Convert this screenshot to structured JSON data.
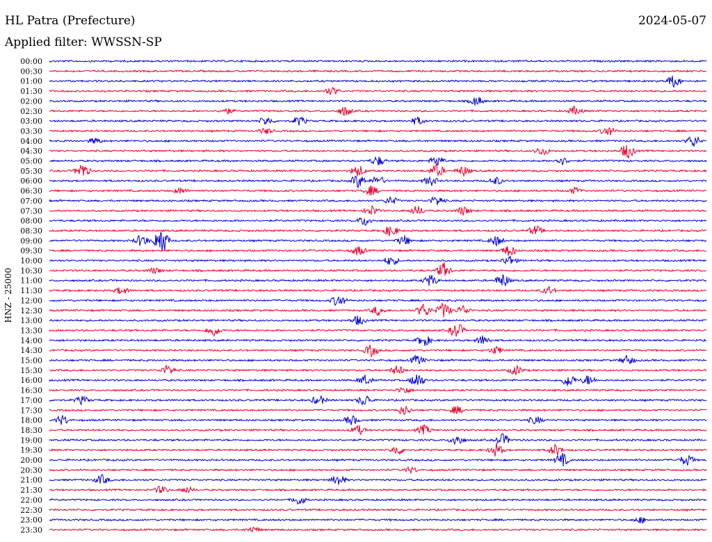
{
  "header": {
    "station": "HL Patra (Prefecture)",
    "date": "2024-05-07",
    "filter": "Applied filter: WWSSN-SP"
  },
  "channel_label": "HNZ - 25000",
  "colors": {
    "even_trace": "#0000cc",
    "odd_trace": "#e8002e"
  },
  "chart_data": {
    "type": "line",
    "title": "HL Patra (Prefecture)",
    "subtitle": "Applied filter: WWSSN-SP",
    "ylabel": "HNZ - 25000",
    "xlabel": "",
    "grid": false,
    "legend": "none",
    "y_tick_labels": [
      "00:00",
      "00:30",
      "01:00",
      "01:30",
      "02:00",
      "02:30",
      "03:00",
      "03:30",
      "04:00",
      "04:30",
      "05:00",
      "05:30",
      "06:00",
      "06:30",
      "07:00",
      "07:30",
      "08:00",
      "08:30",
      "09:00",
      "09:30",
      "10:00",
      "10:30",
      "11:00",
      "11:30",
      "12:00",
      "12:30",
      "13:00",
      "13:30",
      "14:00",
      "14:30",
      "15:00",
      "15:30",
      "16:00",
      "16:30",
      "17:00",
      "17:30",
      "18:00",
      "18:30",
      "19:00",
      "19:30",
      "20:00",
      "20:30",
      "21:00",
      "21:30",
      "22:00",
      "22:30",
      "23:00",
      "23:30"
    ],
    "trace_minutes": 30,
    "events": [
      {
        "row": 2,
        "x": 0.95,
        "amp": 0.6
      },
      {
        "row": 3,
        "x": 0.43,
        "amp": 0.4
      },
      {
        "row": 4,
        "x": 0.65,
        "amp": 0.5
      },
      {
        "row": 5,
        "x": 0.27,
        "amp": 0.3
      },
      {
        "row": 5,
        "x": 0.45,
        "amp": 0.5
      },
      {
        "row": 5,
        "x": 0.8,
        "amp": 0.45
      },
      {
        "row": 6,
        "x": 0.33,
        "amp": 0.45
      },
      {
        "row": 6,
        "x": 0.38,
        "amp": 0.45
      },
      {
        "row": 6,
        "x": 0.56,
        "amp": 0.4
      },
      {
        "row": 7,
        "x": 0.33,
        "amp": 0.3
      },
      {
        "row": 7,
        "x": 0.85,
        "amp": 0.5
      },
      {
        "row": 8,
        "x": 0.07,
        "amp": 0.3
      },
      {
        "row": 8,
        "x": 0.98,
        "amp": 0.6
      },
      {
        "row": 9,
        "x": 0.75,
        "amp": 0.45
      },
      {
        "row": 9,
        "x": 0.88,
        "amp": 0.8
      },
      {
        "row": 10,
        "x": 0.5,
        "amp": 0.5
      },
      {
        "row": 10,
        "x": 0.59,
        "amp": 0.5
      },
      {
        "row": 10,
        "x": 0.78,
        "amp": 0.4
      },
      {
        "row": 11,
        "x": 0.05,
        "amp": 0.8
      },
      {
        "row": 11,
        "x": 0.47,
        "amp": 0.6
      },
      {
        "row": 11,
        "x": 0.59,
        "amp": 0.7
      },
      {
        "row": 11,
        "x": 0.63,
        "amp": 0.5
      },
      {
        "row": 12,
        "x": 0.47,
        "amp": 0.7
      },
      {
        "row": 12,
        "x": 0.5,
        "amp": 0.5
      },
      {
        "row": 12,
        "x": 0.58,
        "amp": 0.5
      },
      {
        "row": 12,
        "x": 0.68,
        "amp": 0.4
      },
      {
        "row": 13,
        "x": 0.2,
        "amp": 0.3
      },
      {
        "row": 13,
        "x": 0.49,
        "amp": 0.5
      },
      {
        "row": 13,
        "x": 0.8,
        "amp": 0.3
      },
      {
        "row": 14,
        "x": 0.52,
        "amp": 0.4
      },
      {
        "row": 14,
        "x": 0.59,
        "amp": 0.5
      },
      {
        "row": 15,
        "x": 0.49,
        "amp": 0.5
      },
      {
        "row": 15,
        "x": 0.56,
        "amp": 0.5
      },
      {
        "row": 15,
        "x": 0.63,
        "amp": 0.45
      },
      {
        "row": 16,
        "x": 0.48,
        "amp": 0.5
      },
      {
        "row": 17,
        "x": 0.52,
        "amp": 0.6
      },
      {
        "row": 17,
        "x": 0.74,
        "amp": 0.5
      },
      {
        "row": 18,
        "x": 0.14,
        "amp": 0.6
      },
      {
        "row": 18,
        "x": 0.17,
        "amp": 1.6
      },
      {
        "row": 18,
        "x": 0.54,
        "amp": 0.5
      },
      {
        "row": 18,
        "x": 0.68,
        "amp": 0.5
      },
      {
        "row": 19,
        "x": 0.47,
        "amp": 0.5
      },
      {
        "row": 19,
        "x": 0.7,
        "amp": 0.6
      },
      {
        "row": 20,
        "x": 0.52,
        "amp": 0.5
      },
      {
        "row": 20,
        "x": 0.7,
        "amp": 0.5
      },
      {
        "row": 21,
        "x": 0.16,
        "amp": 0.3
      },
      {
        "row": 21,
        "x": 0.6,
        "amp": 0.8
      },
      {
        "row": 22,
        "x": 0.58,
        "amp": 0.6
      },
      {
        "row": 22,
        "x": 0.69,
        "amp": 0.7
      },
      {
        "row": 23,
        "x": 0.11,
        "amp": 0.4
      },
      {
        "row": 23,
        "x": 0.76,
        "amp": 0.4
      },
      {
        "row": 24,
        "x": 0.44,
        "amp": 0.6
      },
      {
        "row": 25,
        "x": 0.5,
        "amp": 0.5
      },
      {
        "row": 25,
        "x": 0.57,
        "amp": 0.7
      },
      {
        "row": 25,
        "x": 0.6,
        "amp": 0.8
      },
      {
        "row": 25,
        "x": 0.63,
        "amp": 0.5
      },
      {
        "row": 26,
        "x": 0.47,
        "amp": 0.5
      },
      {
        "row": 27,
        "x": 0.25,
        "amp": 0.6
      },
      {
        "row": 27,
        "x": 0.62,
        "amp": 0.8
      },
      {
        "row": 28,
        "x": 0.57,
        "amp": 0.6
      },
      {
        "row": 28,
        "x": 0.66,
        "amp": 0.5
      },
      {
        "row": 29,
        "x": 0.49,
        "amp": 0.6
      },
      {
        "row": 29,
        "x": 0.68,
        "amp": 0.4
      },
      {
        "row": 30,
        "x": 0.56,
        "amp": 0.5
      },
      {
        "row": 30,
        "x": 0.88,
        "amp": 0.5
      },
      {
        "row": 31,
        "x": 0.18,
        "amp": 0.5
      },
      {
        "row": 31,
        "x": 0.53,
        "amp": 0.5
      },
      {
        "row": 31,
        "x": 0.71,
        "amp": 0.5
      },
      {
        "row": 32,
        "x": 0.48,
        "amp": 0.5
      },
      {
        "row": 32,
        "x": 0.56,
        "amp": 0.8
      },
      {
        "row": 32,
        "x": 0.79,
        "amp": 0.7
      },
      {
        "row": 32,
        "x": 0.82,
        "amp": 0.5
      },
      {
        "row": 33,
        "x": 0.54,
        "amp": 0.4
      },
      {
        "row": 34,
        "x": 0.05,
        "amp": 0.4
      },
      {
        "row": 34,
        "x": 0.41,
        "amp": 0.5
      },
      {
        "row": 34,
        "x": 0.48,
        "amp": 0.6
      },
      {
        "row": 35,
        "x": 0.54,
        "amp": 0.5
      },
      {
        "row": 35,
        "x": 0.62,
        "amp": 0.4
      },
      {
        "row": 36,
        "x": 0.02,
        "amp": 0.5
      },
      {
        "row": 36,
        "x": 0.46,
        "amp": 0.5
      },
      {
        "row": 36,
        "x": 0.74,
        "amp": 0.4
      },
      {
        "row": 37,
        "x": 0.47,
        "amp": 0.5
      },
      {
        "row": 37,
        "x": 0.57,
        "amp": 0.5
      },
      {
        "row": 38,
        "x": 0.62,
        "amp": 0.6
      },
      {
        "row": 38,
        "x": 0.69,
        "amp": 0.6
      },
      {
        "row": 39,
        "x": 0.53,
        "amp": 0.5
      },
      {
        "row": 39,
        "x": 0.68,
        "amp": 0.7
      },
      {
        "row": 39,
        "x": 0.77,
        "amp": 0.6
      },
      {
        "row": 40,
        "x": 0.78,
        "amp": 0.7
      },
      {
        "row": 40,
        "x": 0.97,
        "amp": 0.6
      },
      {
        "row": 41,
        "x": 0.55,
        "amp": 0.3
      },
      {
        "row": 42,
        "x": 0.08,
        "amp": 0.5
      },
      {
        "row": 42,
        "x": 0.44,
        "amp": 0.6
      },
      {
        "row": 43,
        "x": 0.17,
        "amp": 0.4
      },
      {
        "row": 43,
        "x": 0.21,
        "amp": 0.3
      },
      {
        "row": 44,
        "x": 0.38,
        "amp": 0.5
      },
      {
        "row": 46,
        "x": 0.9,
        "amp": 0.3
      },
      {
        "row": 47,
        "x": 0.31,
        "amp": 0.3
      }
    ]
  }
}
